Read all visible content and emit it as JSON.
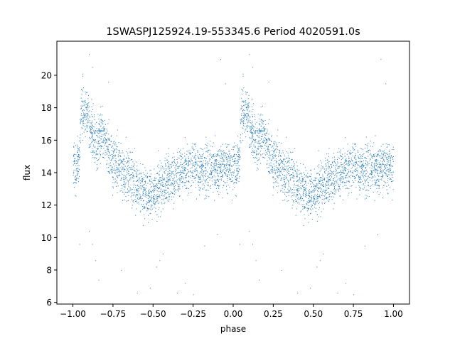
{
  "chart_data": {
    "type": "scatter",
    "title": "1SWASPJ125924.19-553345.6 Period 4020591.0s",
    "xlabel": "phase",
    "ylabel": "flux",
    "xlim": [
      -1.1,
      1.1
    ],
    "ylim": [
      5.9,
      22.1
    ],
    "xticks": [
      -1.0,
      -0.75,
      -0.5,
      -0.25,
      0.0,
      0.25,
      0.5,
      0.75,
      1.0
    ],
    "xtick_labels": [
      "−1.00",
      "−0.75",
      "−0.50",
      "−0.25",
      "0.00",
      "0.25",
      "0.50",
      "0.75",
      "1.00"
    ],
    "yticks": [
      6,
      8,
      10,
      12,
      14,
      16,
      18,
      20
    ],
    "ytick_labels": [
      "6",
      "8",
      "10",
      "12",
      "14",
      "16",
      "18",
      "20"
    ],
    "grid": false,
    "marker_color": "#1f77b4",
    "series": [
      {
        "profile": {
          "phase": [
            0.0,
            0.02,
            0.04,
            0.05,
            0.08,
            0.12,
            0.15,
            0.18,
            0.2,
            0.25,
            0.3,
            0.35,
            0.4,
            0.45,
            0.5,
            0.55,
            0.6,
            0.65,
            0.7,
            0.75,
            0.8,
            0.85,
            0.9,
            0.95,
            1.0
          ],
          "flux": [
            14.4,
            14.6,
            15.0,
            17.8,
            17.6,
            16.5,
            15.5,
            16.8,
            16.0,
            14.5,
            14.2,
            13.8,
            13.2,
            12.8,
            12.6,
            13.2,
            13.6,
            14.0,
            14.2,
            14.4,
            14.2,
            14.0,
            14.2,
            14.5,
            14.4
          ]
        },
        "outliers": [
          [
            -0.96,
            9.6
          ],
          [
            -0.9,
            10.4
          ],
          [
            -0.88,
            9.6
          ],
          [
            -0.86,
            8.6
          ],
          [
            -0.84,
            7.4
          ],
          [
            -0.7,
            8.0
          ],
          [
            -0.6,
            6.6
          ],
          [
            -0.52,
            6.9
          ],
          [
            -0.48,
            8.2
          ],
          [
            -0.46,
            8.6
          ],
          [
            -0.44,
            9.0
          ],
          [
            -0.35,
            6.6
          ],
          [
            -0.3,
            7.2
          ],
          [
            -0.25,
            6.5
          ],
          [
            -0.18,
            9.5
          ],
          [
            -0.1,
            10.2
          ],
          [
            -0.9,
            21.3
          ],
          [
            -0.94,
            20.1
          ],
          [
            -0.88,
            20.5
          ],
          [
            -0.78,
            19.6
          ],
          [
            -0.08,
            21.0
          ],
          [
            -0.05,
            19.5
          ],
          [
            0.04,
            9.6
          ],
          [
            0.1,
            10.4
          ],
          [
            0.12,
            9.6
          ],
          [
            0.14,
            8.6
          ],
          [
            0.16,
            7.4
          ],
          [
            0.3,
            8.0
          ],
          [
            0.4,
            6.6
          ],
          [
            0.48,
            6.9
          ],
          [
            0.52,
            8.2
          ],
          [
            0.54,
            8.6
          ],
          [
            0.56,
            9.0
          ],
          [
            0.65,
            6.6
          ],
          [
            0.7,
            7.2
          ],
          [
            0.75,
            6.5
          ],
          [
            0.82,
            9.5
          ],
          [
            0.9,
            10.2
          ],
          [
            0.1,
            21.3
          ],
          [
            0.06,
            20.1
          ],
          [
            0.12,
            20.5
          ],
          [
            0.22,
            19.6
          ],
          [
            0.92,
            21.0
          ],
          [
            0.95,
            19.5
          ]
        ]
      }
    ]
  }
}
